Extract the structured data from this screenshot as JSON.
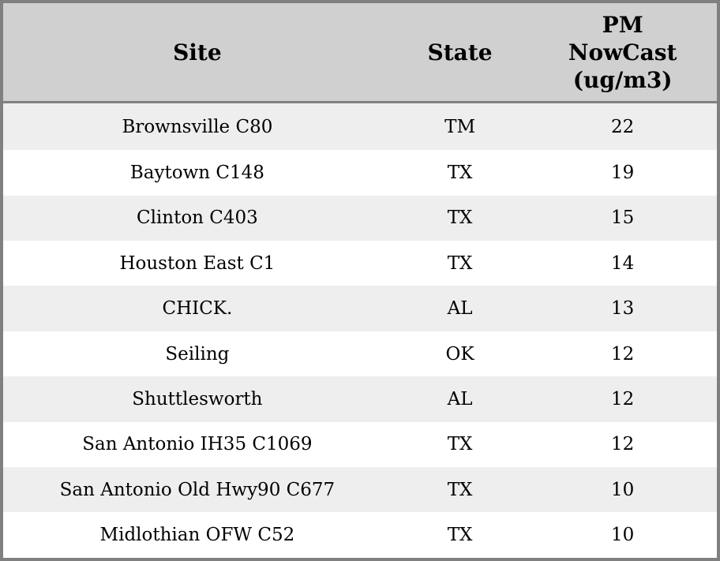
{
  "chart_data": {
    "type": "table",
    "title": "",
    "columns": [
      "Site",
      "State",
      "PM\nNowCast\n(ug/m3)"
    ],
    "rows": [
      [
        "Brownsville C80",
        "TM",
        "22"
      ],
      [
        "Baytown C148",
        "TX",
        "19"
      ],
      [
        "Clinton C403",
        "TX",
        "15"
      ],
      [
        "Houston East C1",
        "TX",
        "14"
      ],
      [
        "CHICK.",
        "AL",
        "13"
      ],
      [
        "Seiling",
        "OK",
        "12"
      ],
      [
        "Shuttlesworth",
        "AL",
        "12"
      ],
      [
        "San Antonio IH35 C1069",
        "TX",
        "12"
      ],
      [
        "San Antonio Old Hwy90 C677",
        "TX",
        "10"
      ],
      [
        "Midlothian OFW C52",
        "TX",
        "10"
      ]
    ],
    "layout": {
      "zebra_striping": true,
      "first_data_row_shaded": true,
      "column_alignment": [
        "center",
        "center",
        "center"
      ]
    }
  },
  "colors": {
    "border": "#808080",
    "header_background": "#d0d0d0",
    "row_stripe_background": "#eeeeee",
    "row_background": "#ffffff",
    "text": "#000000"
  }
}
